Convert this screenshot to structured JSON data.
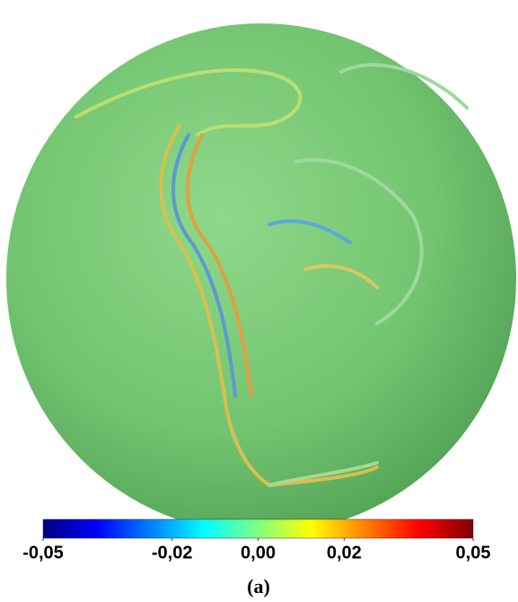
{
  "chart_data": {
    "type": "colorbar",
    "xlim": [
      -0.05,
      0.05
    ],
    "xticks": [
      {
        "value": -0.05,
        "label": "-0,05"
      },
      {
        "value": -0.02,
        "label": "-0,02"
      },
      {
        "value": 0,
        "label": "0,00"
      },
      {
        "value": 0.02,
        "label": "0,02"
      },
      {
        "value": 0.05,
        "label": "0,05"
      }
    ],
    "colors": [
      "#00007f",
      "#0000ff",
      "#0080ff",
      "#00ffff",
      "#80ff80",
      "#ffff00",
      "#ff8000",
      "#ff0000",
      "#7f0000"
    ],
    "caption": "(a)"
  }
}
